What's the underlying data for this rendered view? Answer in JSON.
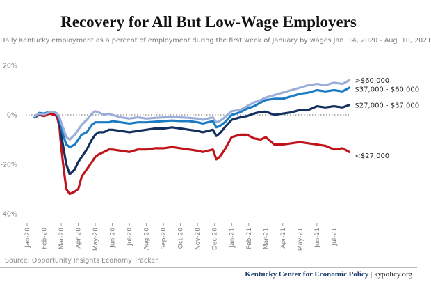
{
  "title": "Recovery for All But Low-Wage Employers",
  "subtitle": "Daily Kentucky employment as a percent of employment during the first week of January by wages Jan. 14, 2020 - Aug. 10, 2021",
  "source": "Source: Opportunity Insights Economy Tracker.",
  "footer": {
    "org": "Kentucky Center for Economic Policy",
    "separator": " | ",
    "site": "kypolicy.org"
  },
  "colors": {
    "high": "#9aaed9",
    "upper_mid": "#1b7bc3",
    "lower_mid": "#14305e",
    "low": "#c0141a",
    "zero_line": "#888888"
  },
  "chart_data": {
    "type": "line",
    "title": "Recovery for All But Low-Wage Employers",
    "xlabel": "",
    "ylabel": "",
    "ylim": [
      -40,
      20
    ],
    "yticks": [
      20,
      0,
      -20,
      -40
    ],
    "ytick_labels": [
      "20%",
      "0%",
      "-20%",
      "-40%"
    ],
    "xticks": [
      "Jan-20",
      "Feb-20",
      "Mar-20",
      "Apr-20",
      "May-20",
      "Jun-20",
      "Jul-20",
      "Aug-20",
      "Sep-20",
      "Oct-20",
      "Nov-20",
      "Dec-20",
      "Jan-21",
      "Feb-21",
      "Mar-21",
      "Apr-21",
      "May-21",
      "Jun-21",
      "Jul-21"
    ],
    "grid": false,
    "legend": "direct labels at line ends",
    "x": [
      0.45,
      0.7,
      1.0,
      1.3,
      1.6,
      1.75,
      1.9,
      2.0,
      2.15,
      2.3,
      2.5,
      2.65,
      2.8,
      3.0,
      3.2,
      3.5,
      3.8,
      4.0,
      4.2,
      4.5,
      4.8,
      5.0,
      5.5,
      6.0,
      6.5,
      7.0,
      7.5,
      8.0,
      8.5,
      9.0,
      9.5,
      10.0,
      10.3,
      10.6,
      10.9,
      11.1,
      11.3,
      11.6,
      12.0,
      12.5,
      12.9,
      13.3,
      13.7,
      14.0,
      14.5,
      15.0,
      15.5,
      16.0,
      16.5,
      17.0,
      17.5,
      18.0,
      18.5,
      18.9
    ],
    "series": [
      {
        "name": ">$60,000",
        "color_key": "high",
        "values": [
          -0.5,
          0.5,
          0.2,
          1,
          1,
          0.5,
          -1,
          -3,
          -6,
          -9,
          -10,
          -9,
          -8,
          -6,
          -4,
          -2,
          0.5,
          1.5,
          1,
          0,
          0.5,
          0,
          -1,
          -1.5,
          -1,
          -1.5,
          -1.2,
          -1,
          -0.8,
          -1,
          -1.2,
          -1.5,
          -2,
          -1.5,
          -1,
          -3,
          -2.5,
          -1,
          1.5,
          2,
          3.5,
          5,
          6,
          7,
          8,
          9,
          10,
          11,
          12,
          12.5,
          12,
          13,
          12.5,
          14
        ]
      },
      {
        "name": "$37,000 - $60,000",
        "color_key": "upper_mid",
        "values": [
          -1,
          0.8,
          0.5,
          1.2,
          1,
          0.5,
          -2,
          -5,
          -9,
          -12,
          -13,
          -12.5,
          -12,
          -10,
          -8,
          -7,
          -4,
          -3,
          -3,
          -3,
          -3,
          -2.5,
          -3,
          -3.5,
          -3,
          -3,
          -2.8,
          -2.5,
          -2.3,
          -2.5,
          -2.5,
          -3,
          -3.5,
          -3,
          -2.5,
          -5,
          -4.5,
          -3,
          0,
          1,
          2.5,
          3.5,
          5,
          6,
          6.5,
          6.5,
          7.5,
          8.5,
          9,
          10,
          9.5,
          10,
          9.5,
          11
        ]
      },
      {
        "name": "$27,000 - $37,000",
        "color_key": "lower_mid",
        "values": [
          -1,
          0.3,
          0.5,
          1,
          1,
          0.5,
          -3,
          -8,
          -14,
          -20,
          -24,
          -23,
          -22,
          -19,
          -17,
          -14,
          -10,
          -8,
          -7,
          -7,
          -6,
          -6,
          -6.5,
          -7,
          -6.5,
          -6,
          -5.5,
          -5.5,
          -5,
          -5.5,
          -6,
          -6.5,
          -7,
          -6.5,
          -6,
          -8.5,
          -7.5,
          -5,
          -2,
          -1,
          -0.5,
          0.5,
          1.2,
          1.3,
          0,
          0.5,
          1,
          2,
          2,
          3.5,
          3,
          3.5,
          3,
          4
        ]
      },
      {
        "name": "<$27,000",
        "color_key": "low",
        "values": [
          -1,
          0,
          -0.5,
          0.5,
          0,
          -0.5,
          -5,
          -13,
          -22,
          -30,
          -32,
          -31.5,
          -31,
          -30,
          -25,
          -22,
          -19,
          -17,
          -16,
          -15,
          -14,
          -14,
          -14.5,
          -15,
          -14,
          -14,
          -13.5,
          -13.5,
          -13,
          -13.5,
          -14,
          -14.5,
          -15,
          -14.5,
          -14,
          -18,
          -17,
          -14,
          -9,
          -8,
          -8,
          -9.5,
          -10,
          -9,
          -12,
          -12,
          -11.5,
          -11,
          -11.5,
          -12,
          -12.5,
          -14,
          -13.5,
          -15
        ]
      }
    ],
    "end_labels": [
      ">$60,000",
      "$37,000 - $60,000",
      "$27,000 - $37,000",
      "<$27,000"
    ]
  }
}
